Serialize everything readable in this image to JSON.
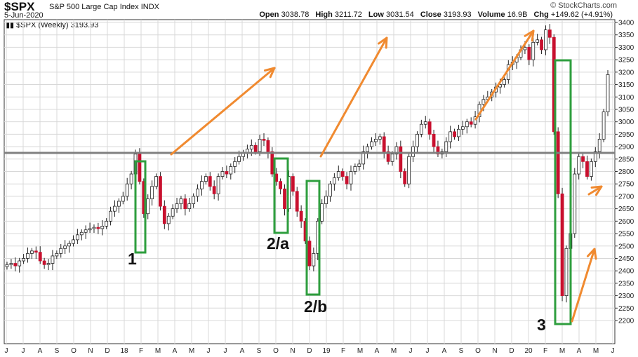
{
  "header": {
    "symbol": "$SPX",
    "name": "S&P 500 Large Cap Index",
    "exchange": "INDX",
    "date": "5-Jun-2020",
    "legend": "$SPX (Weekly) 3193.93",
    "brand": "© StockCharts.com",
    "quote": {
      "open_label": "Open",
      "open": "3038.78",
      "high_label": "High",
      "high": "3211.72",
      "low_label": "Low",
      "low": "3031.54",
      "close_label": "Close",
      "close": "3193.93",
      "volume_label": "Volume",
      "volume": "16.9B",
      "chg_label": "Chg",
      "chg": "+149.62 (+4.91%)"
    }
  },
  "chart_data": {
    "type": "candlestick",
    "interval": "weekly",
    "y_range": [
      2200,
      3400
    ],
    "y_ticks": [
      2200,
      2250,
      2300,
      2350,
      2400,
      2450,
      2500,
      2550,
      2600,
      2650,
      2700,
      2750,
      2800,
      2850,
      2900,
      2950,
      3000,
      3050,
      3100,
      3150,
      3200,
      3250,
      3300,
      3350,
      3400
    ],
    "x_labels": [
      "J",
      "J",
      "A",
      "S",
      "O",
      "N",
      "D",
      "18",
      "F",
      "M",
      "A",
      "M",
      "J",
      "J",
      "A",
      "S",
      "O",
      "N",
      "D",
      "19",
      "F",
      "M",
      "A",
      "M",
      "J",
      "J",
      "A",
      "S",
      "O",
      "N",
      "D",
      "20",
      "F",
      "M",
      "A",
      "M",
      "J"
    ],
    "horizontal_line": 2875,
    "up_color": "#ffffff",
    "down_color": "#c8102e",
    "annotations": [
      {
        "text": "1"
      },
      {
        "text": "2/a"
      },
      {
        "text": "2/b"
      },
      {
        "text": "3"
      }
    ],
    "closes": [
      2425,
      2430,
      2420,
      2440,
      2450,
      2470,
      2480,
      2475,
      2440,
      2425,
      2430,
      2460,
      2470,
      2490,
      2500,
      2510,
      2525,
      2545,
      2555,
      2565,
      2570,
      2575,
      2570,
      2580,
      2600,
      2640,
      2660,
      2680,
      2700,
      2750,
      2790,
      2870,
      2760,
      2630,
      2690,
      2740,
      2780,
      2660,
      2590,
      2620,
      2650,
      2670,
      2690,
      2650,
      2670,
      2700,
      2730,
      2760,
      2780,
      2740,
      2710,
      2780,
      2800,
      2790,
      2820,
      2840,
      2860,
      2875,
      2890,
      2905,
      2880,
      2930,
      2925,
      2880,
      2790,
      2760,
      2730,
      2650,
      2780,
      2720,
      2640,
      2600,
      2520,
      2420,
      2470,
      2600,
      2670,
      2700,
      2750,
      2775,
      2800,
      2780,
      2750,
      2800,
      2820,
      2830,
      2880,
      2900,
      2920,
      2930,
      2940,
      2880,
      2840,
      2870,
      2900,
      2800,
      2750,
      2860,
      2900,
      2950,
      2990,
      3000,
      2950,
      2900,
      2870,
      2880,
      2920,
      2960,
      2940,
      2970,
      2980,
      3000,
      2990,
      3020,
      3070,
      3090,
      3100,
      3120,
      3140,
      3150,
      3170,
      3230,
      3240,
      3260,
      3290,
      3300,
      3250,
      3320,
      3330,
      3290,
      3370,
      3340,
      2960,
      2710,
      2300,
      2490,
      2550,
      2790,
      2860,
      2840,
      2780,
      2840,
      2880,
      2930,
      3040,
      3190
    ]
  },
  "colors": {
    "grid": "#d8d8d8",
    "frame": "#333333",
    "hline": "#808080",
    "box": "#2e9e3e",
    "arrow": "#f08a30"
  }
}
